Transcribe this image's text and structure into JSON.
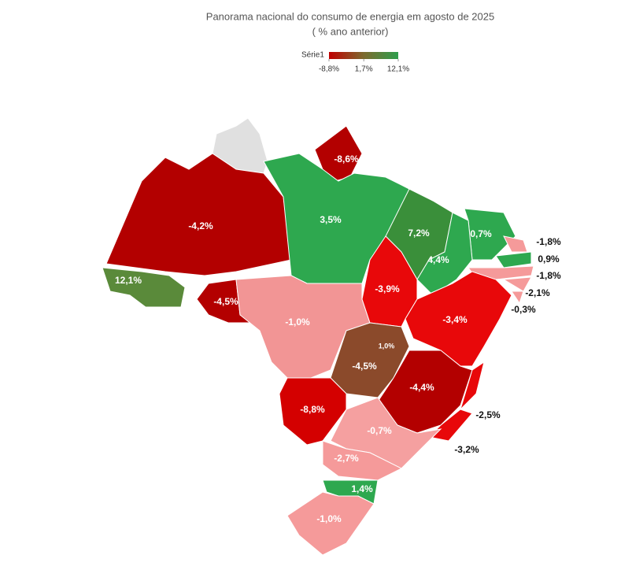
{
  "chart_data": {
    "type": "choropleth",
    "title": "Panorama nacional do consumo de energia em agosto de 2025",
    "subtitle": "( % ano anterior)",
    "legend": {
      "name": "Série1",
      "colors": [
        "#c00000",
        "#7d6a2e",
        "#2e9e4c"
      ],
      "ticks": [
        {
          "value": -8.8,
          "label": "-8,8%"
        },
        {
          "value": 1.7,
          "label": "1,7%"
        },
        {
          "value": 12.1,
          "label": "12,1%"
        }
      ]
    },
    "values": [
      -4.2,
      -8.6,
      3.5,
      7.2,
      0.7,
      -1.8,
      0.9,
      -1.8,
      -2.1,
      -0.3,
      12.1,
      -4.5,
      -1.0,
      -3.9,
      4.4,
      -3.4,
      1.0,
      -4.5,
      -4.4,
      -2.5,
      -3.2,
      -8.8,
      -0.7,
      -2.7,
      1.4,
      -1.0
    ],
    "value_labels": [
      "-4,2%",
      "-8,6%",
      "3,5%",
      "7,2%",
      "0,7%",
      "-1,8%",
      "0,9%",
      "-1,8%",
      "-2,1%",
      "-0,3%",
      "12,1%",
      "-4,5%",
      "-1,0%",
      "-3,9%",
      "4,4%",
      "-3,4%",
      "1,0%",
      "-4,5%",
      "-4,4%",
      "-2,5%",
      "-3,2%",
      "-8,8%",
      "-0,7%",
      "-2,7%",
      "1,4%",
      "-1,0%"
    ],
    "colors": [
      "#b30000",
      "#b30000",
      "#2ea84f",
      "#3a8f3a",
      "#2ea84f",
      "#f59a9a",
      "#2ea84f",
      "#f59a9a",
      "#f59a9a",
      "#f59a9a",
      "#5a8a3a",
      "#b30000",
      "#f29595",
      "#e8080a",
      "#2ea84f",
      "#e8080a",
      "#2ea84f",
      "#8b4a2b",
      "#b30000",
      "#e8080a",
      "#e8080a",
      "#d40000",
      "#f5a0a0",
      "#f59a9a",
      "#2ea84f",
      "#f59a9a"
    ]
  }
}
